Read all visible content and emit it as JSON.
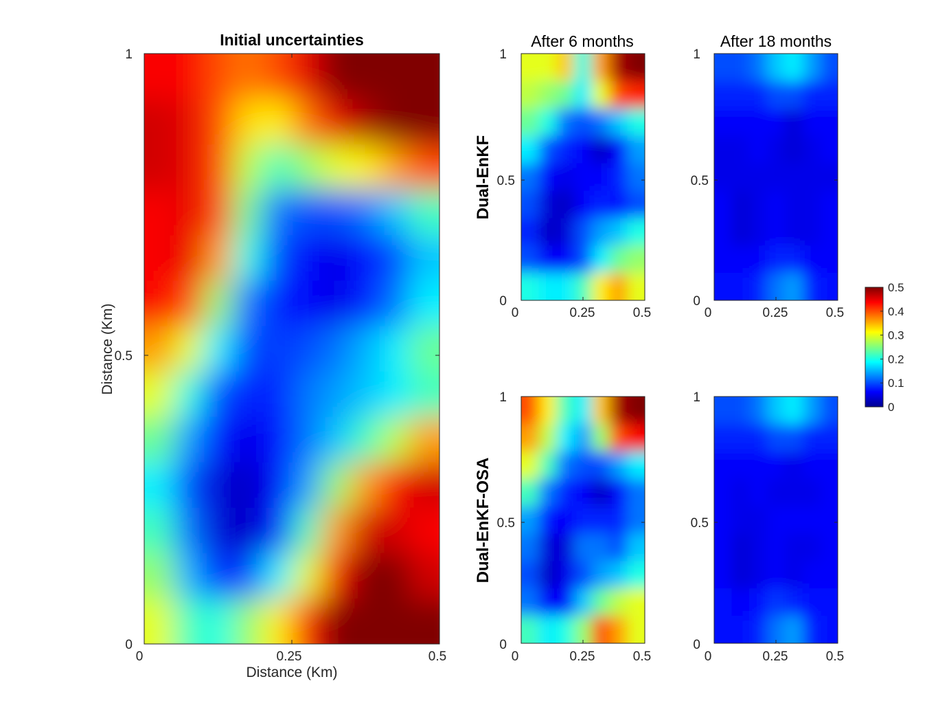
{
  "chart_data": {
    "type": "heatmap",
    "colormap": "jet",
    "colorbar": {
      "range": [
        0,
        0.5
      ],
      "ticks": [
        "0",
        "0.1",
        "0.2",
        "0.3",
        "0.4",
        "0.5"
      ],
      "placement": "right"
    },
    "panels": [
      {
        "id": "initial",
        "title": "Initial uncertainties",
        "row_label": "",
        "xlabel": "Distance (Km)",
        "ylabel": "Distance (Km)",
        "xlim": [
          0,
          0.5
        ],
        "ylim": [
          0,
          1
        ],
        "xticks": [
          "0",
          "0.25",
          "0.5"
        ],
        "yticks": [
          "0",
          "0.5",
          "1"
        ],
        "grid_note": "values in data units (0-0.5), rows from y=1 (top) to y=0 (bottom), columns from x=0 to x=0.5",
        "values": [
          [
            0.44,
            0.44,
            0.4,
            0.38,
            0.4,
            0.45,
            0.5,
            0.5,
            0.5,
            0.5
          ],
          [
            0.46,
            0.45,
            0.4,
            0.33,
            0.32,
            0.38,
            0.45,
            0.48,
            0.5,
            0.5
          ],
          [
            0.46,
            0.45,
            0.4,
            0.28,
            0.22,
            0.26,
            0.3,
            0.32,
            0.36,
            0.4
          ],
          [
            0.44,
            0.45,
            0.4,
            0.24,
            0.12,
            0.1,
            0.1,
            0.12,
            0.16,
            0.22
          ],
          [
            0.44,
            0.45,
            0.36,
            0.2,
            0.1,
            0.06,
            0.05,
            0.07,
            0.1,
            0.16
          ],
          [
            0.44,
            0.4,
            0.26,
            0.12,
            0.08,
            0.06,
            0.05,
            0.08,
            0.12,
            0.18
          ],
          [
            0.36,
            0.3,
            0.18,
            0.1,
            0.09,
            0.1,
            0.12,
            0.15,
            0.18,
            0.24
          ],
          [
            0.3,
            0.2,
            0.1,
            0.08,
            0.08,
            0.12,
            0.14,
            0.16,
            0.18,
            0.22
          ],
          [
            0.24,
            0.14,
            0.07,
            0.05,
            0.07,
            0.12,
            0.16,
            0.22,
            0.28,
            0.36
          ],
          [
            0.18,
            0.1,
            0.04,
            0.03,
            0.06,
            0.14,
            0.26,
            0.36,
            0.44,
            0.46
          ],
          [
            0.22,
            0.12,
            0.04,
            0.03,
            0.08,
            0.22,
            0.36,
            0.46,
            0.46,
            0.44
          ],
          [
            0.26,
            0.15,
            0.08,
            0.1,
            0.18,
            0.3,
            0.44,
            0.5,
            0.5,
            0.46
          ],
          [
            0.3,
            0.22,
            0.2,
            0.26,
            0.32,
            0.42,
            0.5,
            0.5,
            0.5,
            0.5
          ]
        ]
      },
      {
        "id": "enkf_6m",
        "title": "After 6 months",
        "row_label": "Dual-EnKF",
        "xlim": [
          0,
          0.5
        ],
        "ylim": [
          0,
          1
        ],
        "xticks": [
          "0",
          "0.25",
          "0.5"
        ],
        "yticks": [
          "0",
          "0.5",
          "1"
        ],
        "values": [
          [
            0.3,
            0.3,
            0.34,
            0.2,
            0.36,
            0.48,
            0.5
          ],
          [
            0.28,
            0.26,
            0.24,
            0.18,
            0.3,
            0.4,
            0.42
          ],
          [
            0.24,
            0.2,
            0.12,
            0.1,
            0.12,
            0.16,
            0.2
          ],
          [
            0.18,
            0.1,
            0.08,
            0.06,
            0.03,
            0.06,
            0.14
          ],
          [
            0.12,
            0.06,
            0.05,
            0.06,
            0.06,
            0.08,
            0.12
          ],
          [
            0.1,
            0.04,
            0.03,
            0.06,
            0.08,
            0.07,
            0.1
          ],
          [
            0.08,
            0.03,
            0.04,
            0.1,
            0.14,
            0.16,
            0.2
          ],
          [
            0.1,
            0.06,
            0.06,
            0.1,
            0.18,
            0.24,
            0.26
          ],
          [
            0.2,
            0.18,
            0.18,
            0.22,
            0.32,
            0.36,
            0.3
          ]
        ]
      },
      {
        "id": "enkf_18m",
        "title": "After 18 months",
        "row_label": "",
        "xlim": [
          0,
          0.5
        ],
        "ylim": [
          0,
          1
        ],
        "xticks": [
          "0",
          "0.25",
          "0.5"
        ],
        "yticks": [
          "0",
          "0.5",
          "1"
        ],
        "values": [
          [
            0.1,
            0.1,
            0.12,
            0.16,
            0.18,
            0.14,
            0.1
          ],
          [
            0.08,
            0.08,
            0.08,
            0.1,
            0.1,
            0.08,
            0.08
          ],
          [
            0.06,
            0.06,
            0.06,
            0.06,
            0.04,
            0.06,
            0.06
          ],
          [
            0.05,
            0.05,
            0.06,
            0.05,
            0.04,
            0.05,
            0.06
          ],
          [
            0.05,
            0.05,
            0.05,
            0.05,
            0.05,
            0.05,
            0.05
          ],
          [
            0.06,
            0.04,
            0.05,
            0.06,
            0.05,
            0.05,
            0.06
          ],
          [
            0.06,
            0.04,
            0.05,
            0.06,
            0.05,
            0.05,
            0.06
          ],
          [
            0.06,
            0.06,
            0.06,
            0.08,
            0.08,
            0.06,
            0.06
          ],
          [
            0.07,
            0.07,
            0.08,
            0.12,
            0.14,
            0.08,
            0.07
          ]
        ]
      },
      {
        "id": "osa_6m",
        "title": "",
        "row_label": "Dual-EnKF-OSA",
        "xlim": [
          0,
          0.5
        ],
        "ylim": [
          0,
          1
        ],
        "xticks": [
          "0",
          "0.25",
          "0.5"
        ],
        "yticks": [
          "0",
          "0.5",
          "1"
        ],
        "values": [
          [
            0.4,
            0.32,
            0.22,
            0.18,
            0.34,
            0.48,
            0.5
          ],
          [
            0.36,
            0.28,
            0.18,
            0.14,
            0.26,
            0.4,
            0.44
          ],
          [
            0.3,
            0.22,
            0.12,
            0.1,
            0.1,
            0.14,
            0.18
          ],
          [
            0.22,
            0.12,
            0.08,
            0.06,
            0.03,
            0.06,
            0.12
          ],
          [
            0.14,
            0.07,
            0.06,
            0.08,
            0.08,
            0.08,
            0.12
          ],
          [
            0.12,
            0.04,
            0.04,
            0.12,
            0.12,
            0.1,
            0.16
          ],
          [
            0.1,
            0.03,
            0.05,
            0.1,
            0.14,
            0.16,
            0.2
          ],
          [
            0.12,
            0.06,
            0.06,
            0.16,
            0.24,
            0.28,
            0.3
          ],
          [
            0.22,
            0.18,
            0.2,
            0.26,
            0.4,
            0.36,
            0.3
          ]
        ]
      },
      {
        "id": "osa_18m",
        "title": "",
        "row_label": "",
        "xlim": [
          0,
          0.5
        ],
        "ylim": [
          0,
          1
        ],
        "xticks": [
          "0",
          "0.25",
          "0.5"
        ],
        "yticks": [
          "0",
          "0.5",
          "1"
        ],
        "values": [
          [
            0.1,
            0.1,
            0.12,
            0.16,
            0.18,
            0.14,
            0.1
          ],
          [
            0.08,
            0.08,
            0.08,
            0.1,
            0.1,
            0.08,
            0.08
          ],
          [
            0.06,
            0.06,
            0.06,
            0.06,
            0.05,
            0.06,
            0.06
          ],
          [
            0.06,
            0.05,
            0.06,
            0.05,
            0.05,
            0.05,
            0.06
          ],
          [
            0.06,
            0.05,
            0.05,
            0.06,
            0.06,
            0.06,
            0.06
          ],
          [
            0.06,
            0.04,
            0.05,
            0.06,
            0.05,
            0.05,
            0.06
          ],
          [
            0.06,
            0.04,
            0.05,
            0.06,
            0.05,
            0.06,
            0.06
          ],
          [
            0.07,
            0.06,
            0.07,
            0.09,
            0.08,
            0.07,
            0.07
          ],
          [
            0.07,
            0.07,
            0.08,
            0.12,
            0.14,
            0.08,
            0.07
          ]
        ]
      }
    ]
  }
}
